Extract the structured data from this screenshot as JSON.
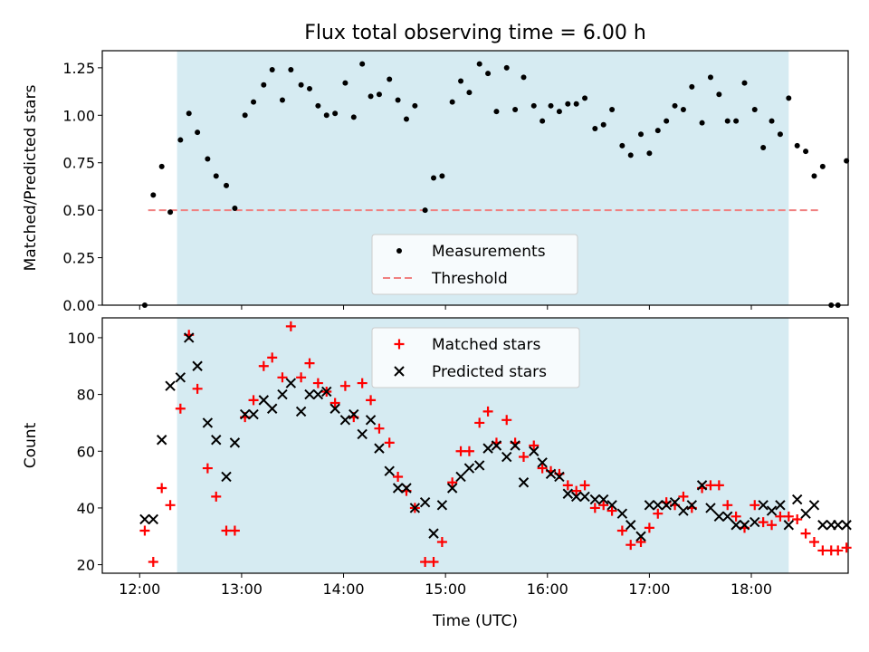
{
  "title": "Flux total observing time = 6.00 h",
  "xlabel": "Time (UTC)",
  "xticks": [
    "12:00",
    "13:00",
    "14:00",
    "15:00",
    "16:00",
    "17:00",
    "18:00"
  ],
  "colors": {
    "shade": "#add8e6",
    "threshold": "#f08080",
    "matched": "#ff0000",
    "predicted": "#000000",
    "measure": "#000000"
  },
  "chart_data": [
    {
      "type": "scatter",
      "ylabel": "Matched/Predicted stars",
      "xlim": [
        "11:38",
        "18:57"
      ],
      "ylim": [
        0,
        1.34
      ],
      "yticks": [
        "0.00",
        "0.25",
        "0.50",
        "0.75",
        "1.00",
        "1.25"
      ],
      "shaded_interval": [
        "12:22",
        "18:22"
      ],
      "legend": {
        "position": "lower center",
        "entries": [
          "Measurements",
          "Threshold"
        ]
      },
      "threshold": {
        "name": "Threshold",
        "value": 0.5,
        "x": [
          "12:05",
          "18:40"
        ]
      },
      "series": [
        {
          "name": "Measurements",
          "points": [
            [
              "12:03",
              0.0
            ],
            [
              "12:08",
              0.58
            ],
            [
              "12:13",
              0.73
            ],
            [
              "12:18",
              0.49
            ],
            [
              "12:24",
              0.87
            ],
            [
              "12:29",
              1.01
            ],
            [
              "12:34",
              0.91
            ],
            [
              "12:40",
              0.77
            ],
            [
              "12:45",
              0.68
            ],
            [
              "12:51",
              0.63
            ],
            [
              "12:56",
              0.51
            ],
            [
              "13:02",
              1.0
            ],
            [
              "13:07",
              1.07
            ],
            [
              "13:13",
              1.16
            ],
            [
              "13:18",
              1.24
            ],
            [
              "13:24",
              1.08
            ],
            [
              "13:29",
              1.24
            ],
            [
              "13:35",
              1.16
            ],
            [
              "13:40",
              1.14
            ],
            [
              "13:45",
              1.05
            ],
            [
              "13:50",
              1.0
            ],
            [
              "13:55",
              1.01
            ],
            [
              "14:01",
              1.17
            ],
            [
              "14:06",
              0.99
            ],
            [
              "14:11",
              1.27
            ],
            [
              "14:16",
              1.1
            ],
            [
              "14:21",
              1.11
            ],
            [
              "14:27",
              1.19
            ],
            [
              "14:32",
              1.08
            ],
            [
              "14:37",
              0.98
            ],
            [
              "14:42",
              1.05
            ],
            [
              "14:48",
              0.5
            ],
            [
              "14:53",
              0.67
            ],
            [
              "14:58",
              0.68
            ],
            [
              "15:04",
              1.07
            ],
            [
              "15:09",
              1.18
            ],
            [
              "15:14",
              1.12
            ],
            [
              "15:20",
              1.27
            ],
            [
              "15:25",
              1.22
            ],
            [
              "15:30",
              1.02
            ],
            [
              "15:36",
              1.25
            ],
            [
              "15:41",
              1.03
            ],
            [
              "15:46",
              1.2
            ],
            [
              "15:52",
              1.05
            ],
            [
              "15:57",
              0.97
            ],
            [
              "16:02",
              1.05
            ],
            [
              "16:07",
              1.02
            ],
            [
              "16:12",
              1.06
            ],
            [
              "16:17",
              1.06
            ],
            [
              "16:22",
              1.09
            ],
            [
              "16:28",
              0.93
            ],
            [
              "16:33",
              0.95
            ],
            [
              "16:38",
              1.03
            ],
            [
              "16:44",
              0.84
            ],
            [
              "16:49",
              0.79
            ],
            [
              "16:55",
              0.9
            ],
            [
              "17:00",
              0.8
            ],
            [
              "17:05",
              0.92
            ],
            [
              "17:10",
              0.97
            ],
            [
              "17:15",
              1.05
            ],
            [
              "17:20",
              1.03
            ],
            [
              "17:25",
              1.15
            ],
            [
              "17:31",
              0.96
            ],
            [
              "17:36",
              1.2
            ],
            [
              "17:41",
              1.11
            ],
            [
              "17:46",
              0.97
            ],
            [
              "17:51",
              0.97
            ],
            [
              "17:56",
              1.17
            ],
            [
              "18:02",
              1.03
            ],
            [
              "18:07",
              0.83
            ],
            [
              "18:12",
              0.97
            ],
            [
              "18:17",
              0.9
            ],
            [
              "18:22",
              1.09
            ],
            [
              "18:27",
              0.84
            ],
            [
              "18:32",
              0.81
            ],
            [
              "18:37",
              0.68
            ],
            [
              "18:42",
              0.73
            ],
            [
              "18:47",
              0.0
            ],
            [
              "18:51",
              0.0
            ],
            [
              "18:56",
              0.76
            ]
          ]
        }
      ]
    },
    {
      "type": "scatter",
      "ylabel": "Count",
      "xlabel": "Time (UTC)",
      "xlim": [
        "11:38",
        "18:57"
      ],
      "ylim": [
        17,
        107
      ],
      "yticks": [
        "20",
        "40",
        "60",
        "80",
        "100"
      ],
      "shaded_interval": [
        "12:22",
        "18:22"
      ],
      "legend": {
        "position": "upper center",
        "entries": [
          "Matched stars",
          "Predicted stars"
        ]
      },
      "series": [
        {
          "name": "Matched stars",
          "marker": "+",
          "points": [
            [
              "12:03",
              32
            ],
            [
              "12:08",
              21
            ],
            [
              "12:13",
              47
            ],
            [
              "12:18",
              41
            ],
            [
              "12:24",
              75
            ],
            [
              "12:29",
              101
            ],
            [
              "12:34",
              82
            ],
            [
              "12:40",
              54
            ],
            [
              "12:45",
              44
            ],
            [
              "12:51",
              32
            ],
            [
              "12:56",
              32
            ],
            [
              "13:02",
              72
            ],
            [
              "13:07",
              78
            ],
            [
              "13:13",
              90
            ],
            [
              "13:18",
              93
            ],
            [
              "13:24",
              86
            ],
            [
              "13:29",
              104
            ],
            [
              "13:35",
              86
            ],
            [
              "13:40",
              91
            ],
            [
              "13:45",
              84
            ],
            [
              "13:50",
              81
            ],
            [
              "13:55",
              77
            ],
            [
              "14:01",
              83
            ],
            [
              "14:06",
              72
            ],
            [
              "14:11",
              84
            ],
            [
              "14:16",
              78
            ],
            [
              "14:21",
              68
            ],
            [
              "14:27",
              63
            ],
            [
              "14:32",
              51
            ],
            [
              "14:37",
              46
            ],
            [
              "14:42",
              40
            ],
            [
              "14:48",
              21
            ],
            [
              "14:53",
              21
            ],
            [
              "14:58",
              28
            ],
            [
              "15:04",
              49
            ],
            [
              "15:09",
              60
            ],
            [
              "15:14",
              60
            ],
            [
              "15:20",
              70
            ],
            [
              "15:25",
              74
            ],
            [
              "15:30",
              63
            ],
            [
              "15:36",
              71
            ],
            [
              "15:41",
              63
            ],
            [
              "15:46",
              58
            ],
            [
              "15:52",
              62
            ],
            [
              "15:57",
              54
            ],
            [
              "16:02",
              53
            ],
            [
              "16:07",
              52
            ],
            [
              "16:12",
              48
            ],
            [
              "16:17",
              46
            ],
            [
              "16:22",
              48
            ],
            [
              "16:28",
              40
            ],
            [
              "16:33",
              41
            ],
            [
              "16:38",
              39
            ],
            [
              "16:44",
              32
            ],
            [
              "16:49",
              27
            ],
            [
              "16:55",
              28
            ],
            [
              "17:00",
              33
            ],
            [
              "17:05",
              38
            ],
            [
              "17:10",
              42
            ],
            [
              "17:15",
              41
            ],
            [
              "17:20",
              44
            ],
            [
              "17:25",
              40
            ],
            [
              "17:31",
              47
            ],
            [
              "17:36",
              48
            ],
            [
              "17:41",
              48
            ],
            [
              "17:46",
              41
            ],
            [
              "17:51",
              37
            ],
            [
              "17:56",
              33
            ],
            [
              "18:02",
              41
            ],
            [
              "18:07",
              35
            ],
            [
              "18:12",
              34
            ],
            [
              "18:17",
              37
            ],
            [
              "18:22",
              37
            ],
            [
              "18:27",
              36
            ],
            [
              "18:32",
              31
            ],
            [
              "18:37",
              28
            ],
            [
              "18:42",
              25
            ],
            [
              "18:47",
              25
            ],
            [
              "18:51",
              25
            ],
            [
              "18:56",
              26
            ]
          ]
        },
        {
          "name": "Predicted stars",
          "marker": "x",
          "points": [
            [
              "12:03",
              36
            ],
            [
              "12:08",
              36
            ],
            [
              "12:13",
              64
            ],
            [
              "12:18",
              83
            ],
            [
              "12:24",
              86
            ],
            [
              "12:29",
              100
            ],
            [
              "12:34",
              90
            ],
            [
              "12:40",
              70
            ],
            [
              "12:45",
              64
            ],
            [
              "12:51",
              51
            ],
            [
              "12:56",
              63
            ],
            [
              "13:02",
              73
            ],
            [
              "13:07",
              73
            ],
            [
              "13:13",
              78
            ],
            [
              "13:18",
              75
            ],
            [
              "13:24",
              80
            ],
            [
              "13:29",
              84
            ],
            [
              "13:35",
              74
            ],
            [
              "13:40",
              80
            ],
            [
              "13:45",
              80
            ],
            [
              "13:50",
              81
            ],
            [
              "13:55",
              75
            ],
            [
              "14:01",
              71
            ],
            [
              "14:06",
              73
            ],
            [
              "14:11",
              66
            ],
            [
              "14:16",
              71
            ],
            [
              "14:21",
              61
            ],
            [
              "14:27",
              53
            ],
            [
              "14:32",
              47
            ],
            [
              "14:37",
              47
            ],
            [
              "14:42",
              40
            ],
            [
              "14:48",
              42
            ],
            [
              "14:53",
              31
            ],
            [
              "14:58",
              41
            ],
            [
              "15:04",
              47
            ],
            [
              "15:09",
              51
            ],
            [
              "15:14",
              54
            ],
            [
              "15:20",
              55
            ],
            [
              "15:25",
              61
            ],
            [
              "15:30",
              62
            ],
            [
              "15:36",
              58
            ],
            [
              "15:41",
              62
            ],
            [
              "15:46",
              49
            ],
            [
              "15:52",
              60
            ],
            [
              "15:57",
              56
            ],
            [
              "16:02",
              52
            ],
            [
              "16:07",
              51
            ],
            [
              "16:12",
              45
            ],
            [
              "16:17",
              44
            ],
            [
              "16:22",
              44
            ],
            [
              "16:28",
              43
            ],
            [
              "16:33",
              43
            ],
            [
              "16:38",
              41
            ],
            [
              "16:44",
              38
            ],
            [
              "16:49",
              34
            ],
            [
              "16:55",
              30
            ],
            [
              "17:00",
              41
            ],
            [
              "17:05",
              41
            ],
            [
              "17:10",
              41
            ],
            [
              "17:15",
              42
            ],
            [
              "17:20",
              39
            ],
            [
              "17:25",
              41
            ],
            [
              "17:31",
              48
            ],
            [
              "17:36",
              40
            ],
            [
              "17:41",
              37
            ],
            [
              "17:46",
              37
            ],
            [
              "17:51",
              34
            ],
            [
              "17:56",
              34
            ],
            [
              "18:02",
              35
            ],
            [
              "18:07",
              41
            ],
            [
              "18:12",
              39
            ],
            [
              "18:17",
              41
            ],
            [
              "18:22",
              34
            ],
            [
              "18:27",
              43
            ],
            [
              "18:32",
              38
            ],
            [
              "18:37",
              41
            ],
            [
              "18:42",
              34
            ],
            [
              "18:47",
              34
            ],
            [
              "18:51",
              34
            ],
            [
              "18:56",
              34
            ]
          ]
        }
      ]
    }
  ]
}
